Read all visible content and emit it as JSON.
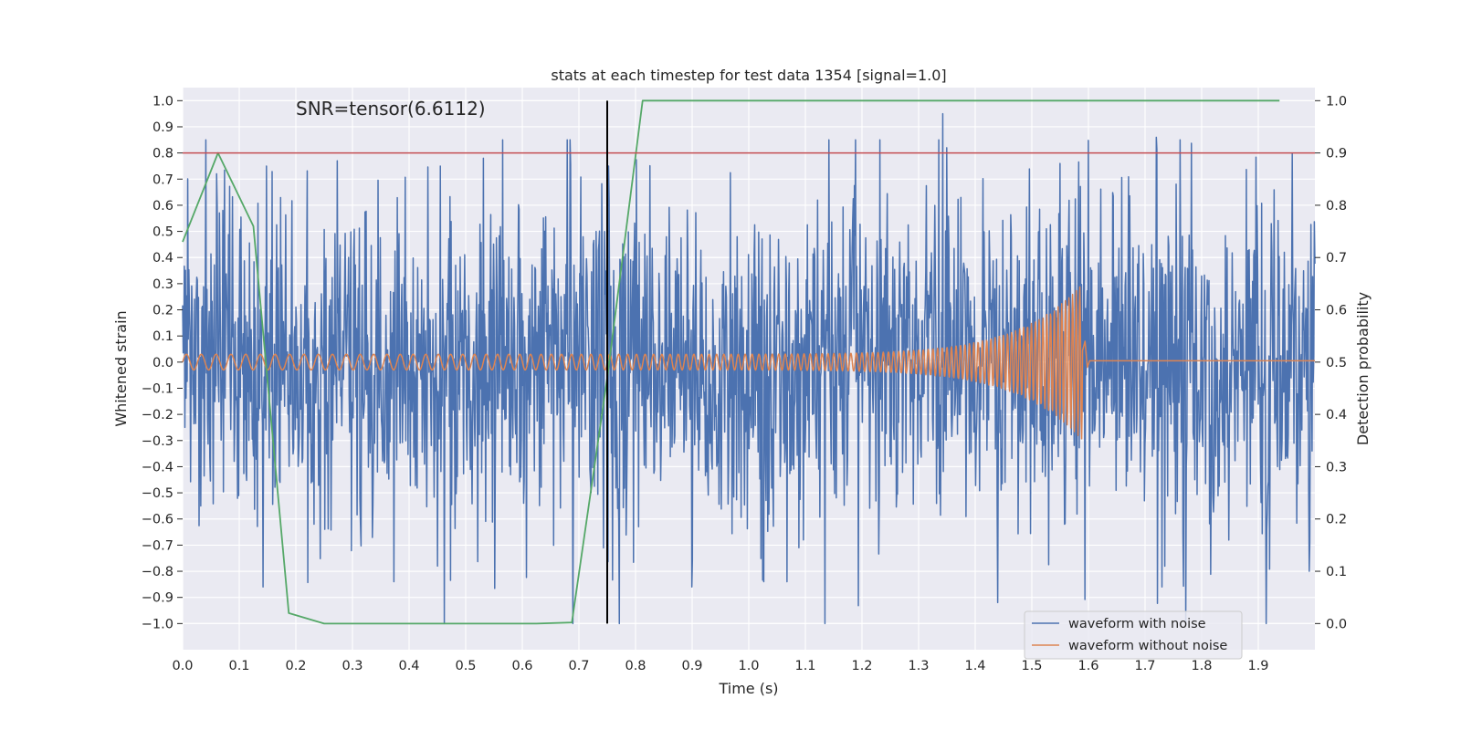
{
  "chart_data": {
    "type": "line",
    "title": "stats at each timestep for test data 1354 [signal=1.0]",
    "xlabel": "Time (s)",
    "ylabel_left": "Whitened strain",
    "ylabel_right": "Detection probability",
    "xlim": [
      0.0,
      2.0
    ],
    "ylim_left": [
      -1.1,
      1.05
    ],
    "ylim_right": [
      -0.05,
      1.025
    ],
    "x_ticks": [
      "0.0",
      "0.1",
      "0.2",
      "0.3",
      "0.4",
      "0.5",
      "0.6",
      "0.7",
      "0.8",
      "0.9",
      "1.0",
      "1.1",
      "1.2",
      "1.3",
      "1.4",
      "1.5",
      "1.6",
      "1.7",
      "1.8",
      "1.9"
    ],
    "x_tick_values": [
      0.0,
      0.1,
      0.2,
      0.3,
      0.4,
      0.5,
      0.6,
      0.7,
      0.8,
      0.9,
      1.0,
      1.1,
      1.2,
      1.3,
      1.4,
      1.5,
      1.6,
      1.7,
      1.8,
      1.9
    ],
    "y_ticks_left": [
      "1.0",
      "0.9",
      "0.8",
      "0.7",
      "0.6",
      "0.5",
      "0.4",
      "0.3",
      "0.2",
      "0.1",
      "0.0",
      "−0.1",
      "−0.2",
      "−0.3",
      "−0.4",
      "−0.5",
      "−0.6",
      "−0.7",
      "−0.8",
      "−0.9",
      "−1.0"
    ],
    "y_tick_values_left": [
      1.0,
      0.9,
      0.8,
      0.7,
      0.6,
      0.5,
      0.4,
      0.3,
      0.2,
      0.1,
      0.0,
      -0.1,
      -0.2,
      -0.3,
      -0.4,
      -0.5,
      -0.6,
      -0.7,
      -0.8,
      -0.9,
      -1.0
    ],
    "y_ticks_right": [
      "1.0",
      "0.9",
      "0.8",
      "0.7",
      "0.6",
      "0.5",
      "0.4",
      "0.3",
      "0.2",
      "0.1",
      "0.0"
    ],
    "y_tick_values_right": [
      1.0,
      0.9,
      0.8,
      0.7,
      0.6,
      0.5,
      0.4,
      0.3,
      0.2,
      0.1,
      0.0
    ],
    "annotation": "SNR=tensor(6.6112)",
    "annotation_x": 0.2,
    "annotation_y": 0.97,
    "threshold": {
      "axis": "right",
      "value": 0.9,
      "color": "#c44e52"
    },
    "vertical_marker": {
      "x": 0.75,
      "y_range": [
        0.0,
        1.0
      ],
      "axis": "right",
      "color": "#000000"
    },
    "legend": {
      "position": "lower-right",
      "entries": [
        {
          "label": "waveform with noise",
          "color": "#4c72b0"
        },
        {
          "label": "waveform without noise",
          "color": "#dd8452"
        }
      ]
    },
    "series": [
      {
        "name": "waveform with noise",
        "axis": "left",
        "color": "#4c72b0",
        "generator": {
          "kind": "noise",
          "samples": 2000,
          "x_start": 0.0,
          "x_end": 2.0,
          "amplitude": 0.3,
          "seed": 1354,
          "clip": [
            -1.0,
            0.95
          ]
        },
        "spikes": [
          [
            0.06,
            0.72
          ],
          [
            0.148,
            0.75
          ],
          [
            0.142,
            -0.86
          ],
          [
            0.455,
            0.75
          ],
          [
            0.462,
            -1.0
          ],
          [
            0.45,
            -0.78
          ],
          [
            0.745,
            0.5
          ],
          [
            1.336,
            0.85
          ],
          [
            1.343,
            0.95
          ],
          [
            1.35,
            0.82
          ],
          [
            1.44,
            -0.92
          ],
          [
            1.375,
            0.63
          ],
          [
            1.55,
            0.76
          ],
          [
            1.72,
            0.86
          ],
          [
            1.73,
            -0.86
          ],
          [
            1.96,
            0.8
          ],
          [
            1.99,
            -0.8
          ],
          [
            0.232,
            -0.62
          ]
        ]
      },
      {
        "name": "waveform without noise",
        "axis": "left",
        "color": "#dd8452",
        "generator": {
          "kind": "chirp",
          "t_start": 0.0,
          "t_merge": 1.59,
          "t_end": 2.0,
          "base_amplitude": 0.03,
          "peak_amplitude": 0.3,
          "start_frequency": 38,
          "end_frequency": 160,
          "tail_offset": 0.005
        }
      },
      {
        "name": "detection probability",
        "axis": "right",
        "color": "#55a868",
        "x": [
          0.0,
          0.0625,
          0.125,
          0.1875,
          0.25,
          0.3125,
          0.375,
          0.4375,
          0.5,
          0.5625,
          0.625,
          0.6875,
          0.75,
          0.8125,
          0.875,
          0.9375,
          1.0,
          1.0625,
          1.125,
          1.1875,
          1.25,
          1.3125,
          1.375,
          1.4375,
          1.5,
          1.5625,
          1.625,
          1.6875,
          1.75,
          1.8125,
          1.875,
          1.9375
        ],
        "values": [
          0.73,
          0.9,
          0.76,
          0.02,
          0.0,
          0.0,
          0.0,
          0.0,
          0.0,
          0.0,
          0.0,
          0.002,
          0.47,
          1.0,
          1.0,
          1.0,
          1.0,
          1.0,
          1.0,
          1.0,
          1.0,
          1.0,
          1.0,
          1.0,
          1.0,
          1.0,
          1.0,
          1.0,
          1.0,
          1.0,
          1.0,
          1.0
        ]
      }
    ],
    "colors": {
      "plot_background": "#eaeaf2",
      "grid": "#ffffff",
      "text": "#262626"
    }
  }
}
